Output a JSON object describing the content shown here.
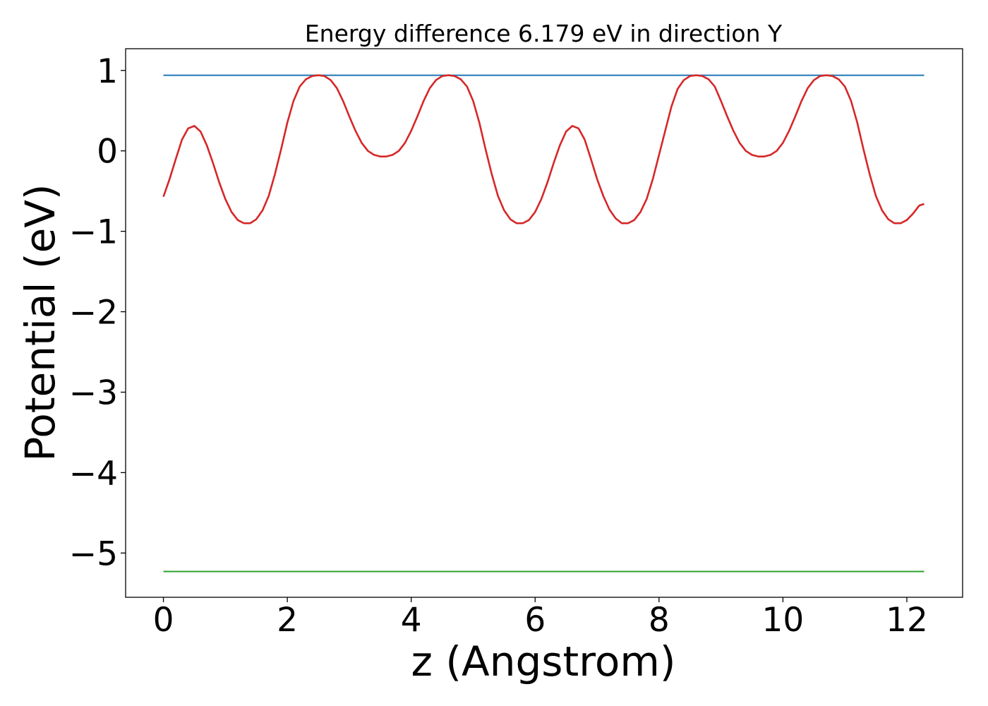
{
  "chart_data": {
    "type": "line",
    "title": "Energy difference 6.179 eV in direction Y",
    "xlabel": "z (Angstrom)",
    "ylabel": "Potential (eV)",
    "xlim": [
      -0.61,
      12.9
    ],
    "ylim": [
      -5.55,
      1.27
    ],
    "xticks": [
      0,
      2,
      4,
      6,
      8,
      10,
      12
    ],
    "xtick_labels": [
      "0",
      "2",
      "4",
      "6",
      "8",
      "10",
      "12"
    ],
    "yticks": [
      1,
      0,
      -1,
      -2,
      -3,
      -4,
      -5
    ],
    "ytick_labels": [
      "1",
      "0",
      "−1",
      "−2",
      "−3",
      "−4",
      "−5"
    ],
    "grid": false,
    "legend": null,
    "series": [
      {
        "color": "#1f77b4",
        "x": [
          0,
          12.28
        ],
        "y": [
          0.94,
          0.94
        ]
      },
      {
        "color": "#2ca02c",
        "x": [
          0,
          12.28
        ],
        "y": [
          -5.23,
          -5.23
        ]
      },
      {
        "color": "#d62728",
        "x": [
          0,
          0.1,
          0.2,
          0.3,
          0.4,
          0.5,
          0.6,
          0.7,
          0.8,
          0.9,
          1.0,
          1.1,
          1.2,
          1.3,
          1.4,
          1.5,
          1.6,
          1.7,
          1.8,
          1.9,
          2.0,
          2.1,
          2.2,
          2.3,
          2.4,
          2.5,
          2.6,
          2.7,
          2.8,
          2.9,
          3.0,
          3.1,
          3.2,
          3.3,
          3.4,
          3.5,
          3.6,
          3.7,
          3.8,
          3.9,
          4.0,
          4.1,
          4.2,
          4.3,
          4.4,
          4.5,
          4.6,
          4.7,
          4.8,
          4.9,
          5.0,
          5.1,
          5.2,
          5.3,
          5.4,
          5.5,
          5.6,
          5.7,
          5.8,
          5.9,
          6.0,
          6.1,
          6.2,
          6.3,
          6.4,
          6.5,
          6.6,
          6.7,
          6.8,
          6.9,
          7.0,
          7.1,
          7.2,
          7.3,
          7.4,
          7.5,
          7.6,
          7.7,
          7.8,
          7.9,
          8.0,
          8.1,
          8.2,
          8.3,
          8.4,
          8.5,
          8.6,
          8.7,
          8.8,
          8.9,
          9.0,
          9.1,
          9.2,
          9.3,
          9.4,
          9.5,
          9.6,
          9.7,
          9.8,
          9.9,
          10.0,
          10.1,
          10.2,
          10.3,
          10.4,
          10.5,
          10.6,
          10.7,
          10.8,
          10.9,
          11.0,
          11.1,
          11.2,
          11.3,
          11.4,
          11.5,
          11.6,
          11.7,
          11.8,
          11.9,
          12.0,
          12.1,
          12.2,
          12.28
        ],
        "y": [
          -0.57,
          -0.35,
          -0.1,
          0.14,
          0.28,
          0.31,
          0.24,
          0.07,
          -0.15,
          -0.39,
          -0.6,
          -0.76,
          -0.86,
          -0.9,
          -0.9,
          -0.85,
          -0.74,
          -0.56,
          -0.29,
          0.02,
          0.35,
          0.62,
          0.8,
          0.89,
          0.93,
          0.94,
          0.93,
          0.88,
          0.78,
          0.62,
          0.43,
          0.25,
          0.1,
          0.0,
          -0.05,
          -0.07,
          -0.07,
          -0.05,
          0.0,
          0.1,
          0.25,
          0.43,
          0.62,
          0.78,
          0.88,
          0.93,
          0.94,
          0.93,
          0.89,
          0.8,
          0.62,
          0.35,
          0.02,
          -0.29,
          -0.56,
          -0.74,
          -0.85,
          -0.9,
          -0.9,
          -0.86,
          -0.76,
          -0.6,
          -0.39,
          -0.15,
          0.07,
          0.24,
          0.31,
          0.28,
          0.14,
          -0.1,
          -0.35,
          -0.56,
          -0.73,
          -0.84,
          -0.9,
          -0.9,
          -0.86,
          -0.76,
          -0.6,
          -0.35,
          -0.05,
          0.25,
          0.55,
          0.77,
          0.88,
          0.93,
          0.94,
          0.93,
          0.89,
          0.8,
          0.62,
          0.43,
          0.25,
          0.1,
          0.0,
          -0.05,
          -0.07,
          -0.07,
          -0.05,
          0.0,
          0.1,
          0.25,
          0.43,
          0.62,
          0.78,
          0.88,
          0.93,
          0.94,
          0.93,
          0.89,
          0.8,
          0.62,
          0.35,
          0.02,
          -0.29,
          -0.56,
          -0.74,
          -0.85,
          -0.9,
          -0.9,
          -0.86,
          -0.78,
          -0.68,
          -0.66
        ]
      }
    ]
  }
}
